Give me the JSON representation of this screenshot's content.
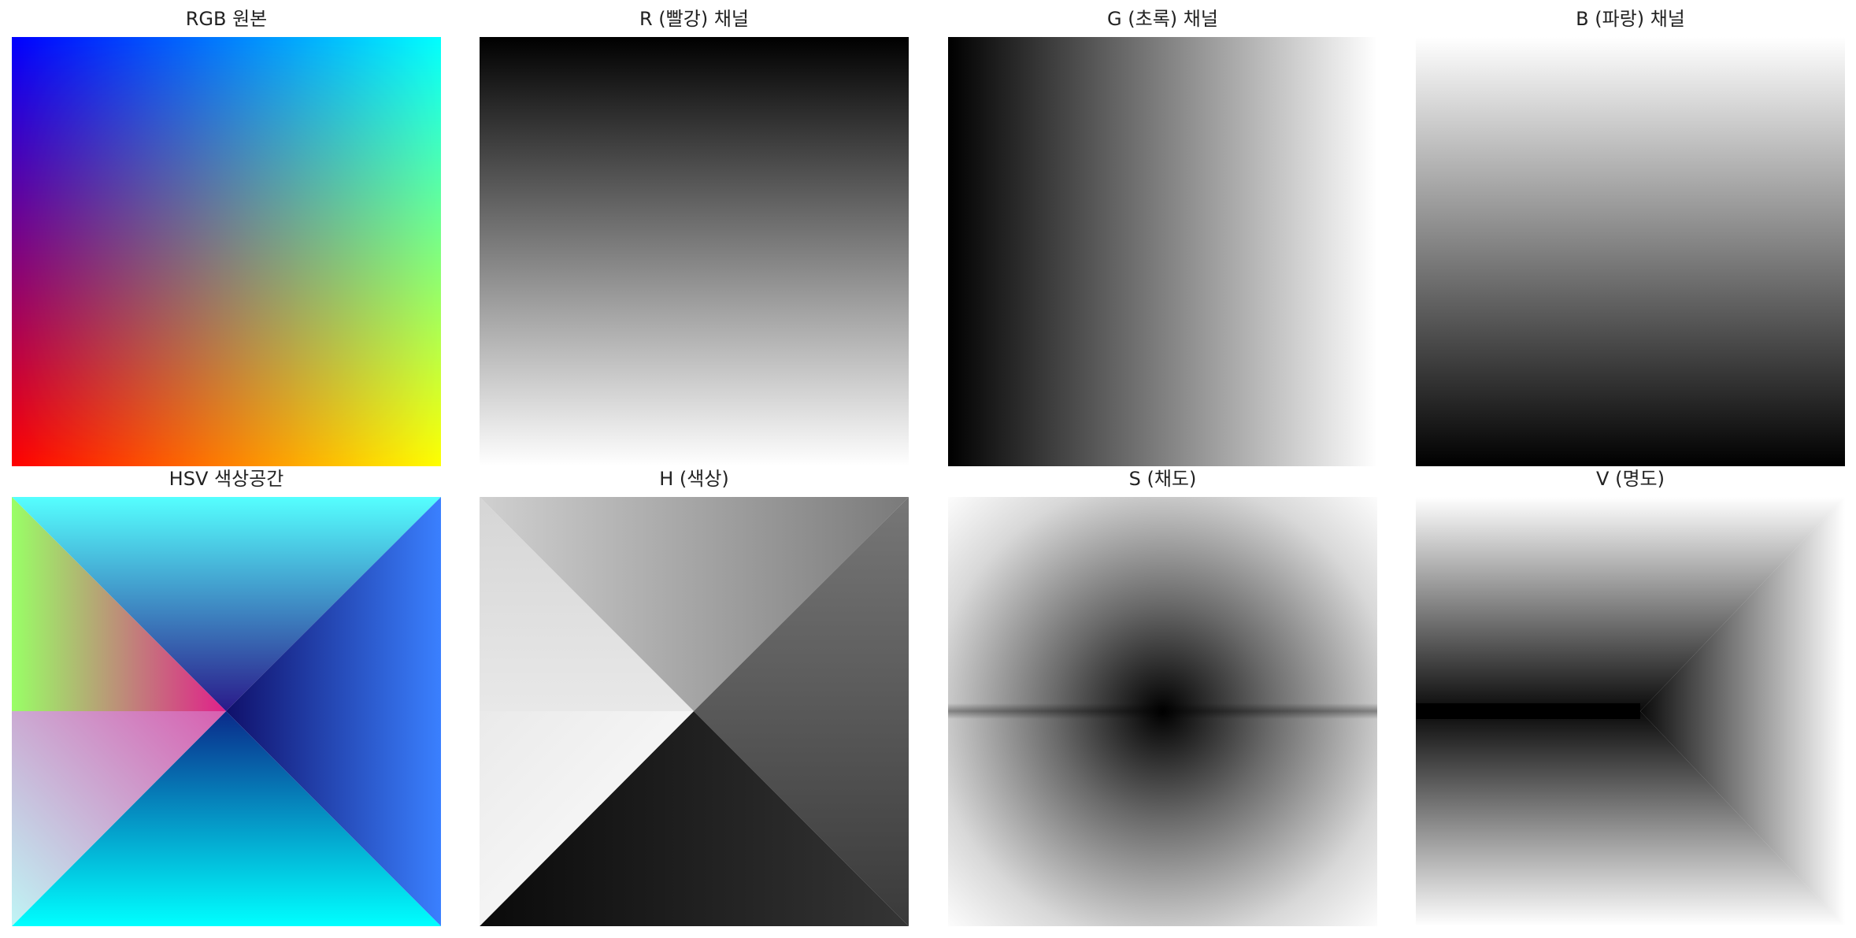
{
  "panels": [
    {
      "id": "rgb",
      "title": "RGB 원본"
    },
    {
      "id": "r",
      "title": "R (빨강) 채널"
    },
    {
      "id": "g",
      "title": "G (초록) 채널"
    },
    {
      "id": "b",
      "title": "B (파랑) 채널"
    },
    {
      "id": "hsv",
      "title": "HSV 색상공간"
    },
    {
      "id": "h",
      "title": "H (색상)"
    },
    {
      "id": "s",
      "title": "S (채도)"
    },
    {
      "id": "v",
      "title": "V (명도)"
    }
  ],
  "chart_data": [
    {
      "type": "heatmap",
      "title": "RGB 원본",
      "grid": false,
      "axes": "off",
      "corner_colors": {
        "top_left": "#0000ff",
        "top_right": "#00ffff",
        "bottom_left": "#ff0000",
        "bottom_right": "#ffff00"
      }
    },
    {
      "type": "heatmap",
      "title": "R (빨강) 채널",
      "grid": false,
      "axes": "off",
      "colormap": "gray",
      "gradient": {
        "direction": "vertical",
        "start": "#000000",
        "end": "#ffffff"
      }
    },
    {
      "type": "heatmap",
      "title": "G (초록) 채널",
      "grid": false,
      "axes": "off",
      "colormap": "gray",
      "gradient": {
        "direction": "horizontal",
        "start": "#000000",
        "end": "#ffffff"
      }
    },
    {
      "type": "heatmap",
      "title": "B (파랑) 채널",
      "grid": false,
      "axes": "off",
      "colormap": "gray",
      "gradient": {
        "direction": "vertical",
        "start": "#ffffff",
        "end": "#000000"
      }
    },
    {
      "type": "heatmap",
      "title": "HSV 색상공간",
      "grid": false,
      "axes": "off"
    },
    {
      "type": "heatmap",
      "title": "H (색상)",
      "grid": false,
      "axes": "off",
      "colormap": "gray"
    },
    {
      "type": "heatmap",
      "title": "S (채도)",
      "grid": false,
      "axes": "off",
      "colormap": "gray"
    },
    {
      "type": "heatmap",
      "title": "V (명도)",
      "grid": false,
      "axes": "off",
      "colormap": "gray"
    }
  ]
}
